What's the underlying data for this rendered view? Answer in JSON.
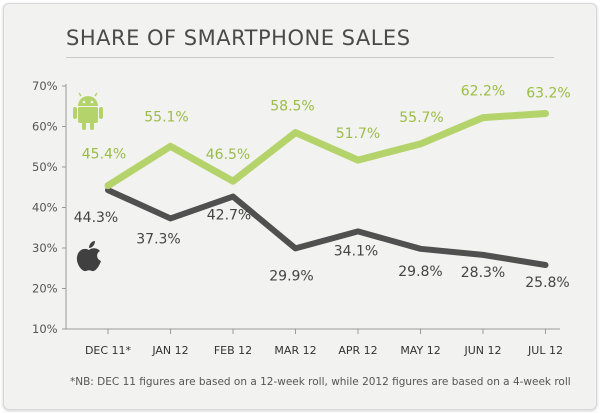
{
  "title": "SHARE OF SMARTPHONE SALES",
  "footnote": "*NB: DEC 11 figures are based on a 12-week roll, while 2012 figures are based on a 4-week roll",
  "colors": {
    "android": "#b5d36b",
    "apple": "#505050",
    "axis": "#9a9a9a",
    "android_label": "#9abd45",
    "apple_label": "#444444"
  },
  "icons": [
    "android-icon",
    "apple-icon"
  ],
  "chart_data": {
    "type": "line",
    "title": "SHARE OF SMARTPHONE SALES",
    "categories": [
      "DEC 11*",
      "JAN 12",
      "FEB 12",
      "MAR 12",
      "APR 12",
      "MAY 12",
      "JUN 12",
      "JUL 12"
    ],
    "y_ticks": [
      "10%",
      "20%",
      "30%",
      "40%",
      "50%",
      "60%",
      "70%"
    ],
    "ylim": [
      10,
      70
    ],
    "grid": false,
    "legend": "icons at left",
    "series": [
      {
        "icon": "android-icon",
        "values": [
          45.4,
          55.1,
          46.5,
          58.5,
          51.7,
          55.7,
          62.2,
          63.2
        ],
        "labels": [
          "45.4%",
          "55.1%",
          "46.5%",
          "58.5%",
          "51.7%",
          "55.7%",
          "62.2%",
          "63.2%"
        ]
      },
      {
        "icon": "apple-icon",
        "values": [
          44.3,
          37.3,
          42.7,
          29.9,
          34.1,
          29.8,
          28.3,
          25.8
        ],
        "labels": [
          "44.3%",
          "37.3%",
          "42.7%",
          "29.9%",
          "34.1%",
          "29.8%",
          "28.3%",
          "25.8%"
        ]
      }
    ]
  }
}
